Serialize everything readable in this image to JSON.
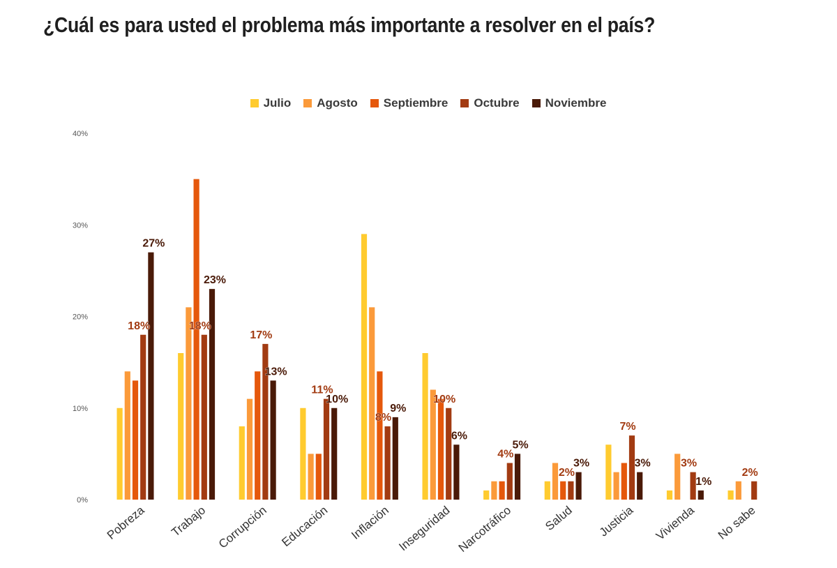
{
  "title": "¿Cuál es para usted el problema más importante a resolver en el país?",
  "chart_data": {
    "type": "bar",
    "categories": [
      "Pobreza",
      "Trabajo",
      "Corrupción",
      "Educación",
      "Inflación",
      "Inseguridad",
      "Narcotráfico",
      "Salud",
      "Justicia",
      "Vivienda",
      "No sabe"
    ],
    "series": [
      {
        "name": "Julio",
        "color": "#FFCB2F",
        "values": [
          10,
          16,
          8,
          10,
          29,
          16,
          1,
          2,
          6,
          1,
          1
        ]
      },
      {
        "name": "Agosto",
        "color": "#FB9A3A",
        "values": [
          14,
          21,
          11,
          5,
          21,
          12,
          2,
          4,
          3,
          5,
          2
        ]
      },
      {
        "name": "Septiembre",
        "color": "#E5580C",
        "values": [
          13,
          35,
          14,
          5,
          14,
          11,
          2,
          2,
          4,
          0,
          0
        ]
      },
      {
        "name": "Octubre",
        "color": "#A23B12",
        "values": [
          18,
          18,
          17,
          11,
          8,
          10,
          4,
          2,
          7,
          3,
          2
        ]
      },
      {
        "name": "Noviembre",
        "color": "#4A1A08",
        "values": [
          27,
          23,
          13,
          10,
          9,
          6,
          5,
          3,
          3,
          1,
          0
        ]
      }
    ],
    "data_labels": [
      {
        "category": "Pobreza",
        "series": "Octubre",
        "text": "18%"
      },
      {
        "category": "Pobreza",
        "series": "Noviembre",
        "text": "27%"
      },
      {
        "category": "Trabajo",
        "series": "Octubre",
        "text": "18%"
      },
      {
        "category": "Trabajo",
        "series": "Noviembre",
        "text": "23%"
      },
      {
        "category": "Corrupción",
        "series": "Octubre",
        "text": "17%"
      },
      {
        "category": "Corrupción",
        "series": "Noviembre",
        "text": "13%"
      },
      {
        "category": "Educación",
        "series": "Octubre",
        "text": "11%"
      },
      {
        "category": "Educación",
        "series": "Noviembre",
        "text": "10%"
      },
      {
        "category": "Inflación",
        "series": "Octubre",
        "text": "8%"
      },
      {
        "category": "Inflación",
        "series": "Noviembre",
        "text": "9%"
      },
      {
        "category": "Inseguridad",
        "series": "Octubre",
        "text": "10%"
      },
      {
        "category": "Inseguridad",
        "series": "Noviembre",
        "text": "6%"
      },
      {
        "category": "Narcotráfico",
        "series": "Octubre",
        "text": "4%"
      },
      {
        "category": "Narcotráfico",
        "series": "Noviembre",
        "text": "5%"
      },
      {
        "category": "Salud",
        "series": "Octubre",
        "text": "2%"
      },
      {
        "category": "Salud",
        "series": "Noviembre",
        "text": "3%"
      },
      {
        "category": "Justicia",
        "series": "Octubre",
        "text": "7%"
      },
      {
        "category": "Justicia",
        "series": "Noviembre",
        "text": "3%"
      },
      {
        "category": "Vivienda",
        "series": "Octubre",
        "text": "3%"
      },
      {
        "category": "Vivienda",
        "series": "Noviembre",
        "text": "1%"
      },
      {
        "category": "No sabe",
        "series": "Octubre",
        "text": "2%"
      }
    ],
    "y_ticks": [
      "0%",
      "10%",
      "20%",
      "30%",
      "40%"
    ],
    "ylim": [
      0,
      40
    ],
    "grid": false,
    "legend_position": "top-center"
  }
}
